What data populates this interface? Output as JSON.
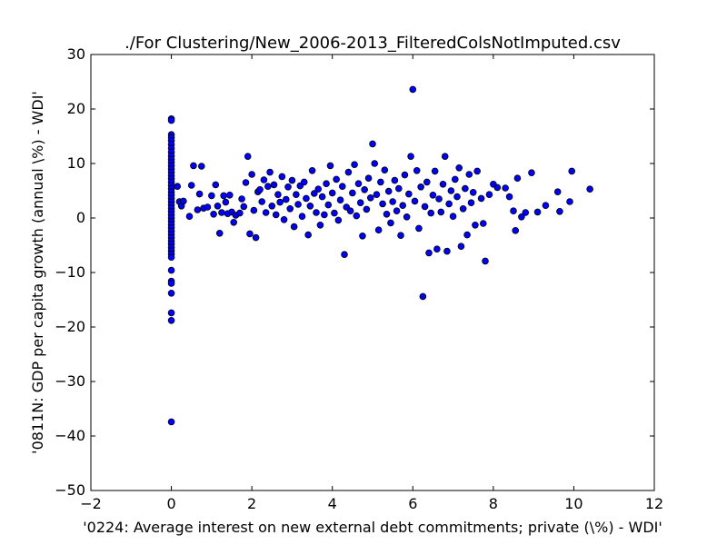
{
  "chart_data": {
    "type": "scatter",
    "title": "./For Clustering/New_2006-2013_FilteredColsNotImputed.csv",
    "xlabel": "'0224: Average interest on new external debt commitments; private  (\\%) - WDI'",
    "ylabel": "'0811N: GDP per capita growth  (annual \\%) - WDI'",
    "xlim": [
      -2,
      12
    ],
    "ylim": [
      -50,
      30
    ],
    "x_ticks": [
      -2,
      0,
      2,
      4,
      6,
      8,
      10,
      12
    ],
    "y_ticks": [
      -50,
      -40,
      -30,
      -20,
      -10,
      0,
      10,
      20,
      30
    ],
    "x_tick_labels": [
      "−2",
      "0",
      "2",
      "4",
      "6",
      "8",
      "10",
      "12"
    ],
    "y_tick_labels": [
      "−50",
      "−40",
      "−30",
      "−20",
      "−10",
      "0",
      "10",
      "20",
      "30"
    ],
    "grid": false,
    "legend": "none",
    "marker_color": "#0000ff",
    "marker_edge": "#000000",
    "series": [
      {
        "points": [
          [
            0,
            18.2
          ],
          [
            0,
            17.9
          ],
          [
            0,
            15.3
          ],
          [
            0,
            14.8
          ],
          [
            0,
            14.2
          ],
          [
            0,
            13.5
          ],
          [
            0,
            12.8
          ],
          [
            0,
            12.1
          ],
          [
            0,
            11.4
          ],
          [
            0,
            10.8
          ],
          [
            0,
            10.2
          ],
          [
            0,
            9.6
          ],
          [
            0,
            9.0
          ],
          [
            0,
            8.4
          ],
          [
            0,
            7.8
          ],
          [
            0,
            7.2
          ],
          [
            0,
            6.6
          ],
          [
            0,
            6.0
          ],
          [
            0,
            5.4
          ],
          [
            0,
            4.8
          ],
          [
            0,
            4.2
          ],
          [
            0,
            3.6
          ],
          [
            0,
            3.0
          ],
          [
            0,
            2.4
          ],
          [
            0,
            1.8
          ],
          [
            0,
            1.2
          ],
          [
            0,
            0.6
          ],
          [
            0,
            0.0
          ],
          [
            0,
            -0.6
          ],
          [
            0,
            -1.2
          ],
          [
            0,
            -1.8
          ],
          [
            0,
            -2.4
          ],
          [
            0,
            -3.0
          ],
          [
            0,
            -3.6
          ],
          [
            0,
            -4.2
          ],
          [
            0,
            -4.8
          ],
          [
            0,
            -5.4
          ],
          [
            0,
            -6.0
          ],
          [
            0,
            -6.6
          ],
          [
            0,
            -7.2
          ],
          [
            0,
            -9.6
          ],
          [
            0,
            -11.6
          ],
          [
            0,
            -12.0
          ],
          [
            0,
            -13.8
          ],
          [
            0,
            -17.4
          ],
          [
            0,
            -18.8
          ],
          [
            0,
            -37.4
          ],
          [
            0.15,
            5.8
          ],
          [
            0.2,
            3.0
          ],
          [
            0.25,
            2.2
          ],
          [
            0.3,
            3.1
          ],
          [
            0.45,
            0.3
          ],
          [
            0.5,
            6.0
          ],
          [
            0.55,
            9.6
          ],
          [
            0.65,
            1.5
          ],
          [
            0.7,
            4.4
          ],
          [
            0.75,
            9.5
          ],
          [
            0.8,
            1.8
          ],
          [
            0.9,
            2.0
          ],
          [
            1.0,
            4.1
          ],
          [
            1.05,
            0.7
          ],
          [
            1.1,
            6.1
          ],
          [
            1.15,
            2.2
          ],
          [
            1.2,
            -2.8
          ],
          [
            1.25,
            1.0
          ],
          [
            1.3,
            4.1
          ],
          [
            1.35,
            2.9
          ],
          [
            1.4,
            0.8
          ],
          [
            1.45,
            4.2
          ],
          [
            1.5,
            1.1
          ],
          [
            1.55,
            -0.8
          ],
          [
            1.6,
            0.5
          ],
          [
            1.7,
            0.9
          ],
          [
            1.75,
            3.5
          ],
          [
            1.8,
            2.1
          ],
          [
            1.85,
            6.5
          ],
          [
            1.9,
            11.3
          ],
          [
            1.95,
            -2.9
          ],
          [
            2.0,
            8.0
          ],
          [
            2.05,
            1.4
          ],
          [
            2.1,
            -3.6
          ],
          [
            2.15,
            4.8
          ],
          [
            2.2,
            5.2
          ],
          [
            2.25,
            3.0
          ],
          [
            2.3,
            7.0
          ],
          [
            2.35,
            1.0
          ],
          [
            2.4,
            5.8
          ],
          [
            2.45,
            8.4
          ],
          [
            2.5,
            2.2
          ],
          [
            2.55,
            6.1
          ],
          [
            2.6,
            0.6
          ],
          [
            2.65,
            4.3
          ],
          [
            2.7,
            2.9
          ],
          [
            2.75,
            7.6
          ],
          [
            2.8,
            -0.3
          ],
          [
            2.85,
            3.4
          ],
          [
            2.9,
            5.7
          ],
          [
            2.95,
            1.7
          ],
          [
            3.0,
            6.9
          ],
          [
            3.05,
            -1.6
          ],
          [
            3.1,
            4.3
          ],
          [
            3.15,
            2.5
          ],
          [
            3.2,
            5.9
          ],
          [
            3.25,
            0.3
          ],
          [
            3.3,
            6.6
          ],
          [
            3.35,
            3.6
          ],
          [
            3.4,
            -3.1
          ],
          [
            3.45,
            2.2
          ],
          [
            3.5,
            8.7
          ],
          [
            3.55,
            4.5
          ],
          [
            3.6,
            1.0
          ],
          [
            3.65,
            5.3
          ],
          [
            3.7,
            -1.3
          ],
          [
            3.75,
            3.9
          ],
          [
            3.8,
            0.6
          ],
          [
            3.85,
            6.3
          ],
          [
            3.9,
            2.4
          ],
          [
            3.95,
            9.6
          ],
          [
            4.0,
            4.6
          ],
          [
            4.05,
            0.9
          ],
          [
            4.1,
            7.1
          ],
          [
            4.15,
            -0.4
          ],
          [
            4.2,
            3.3
          ],
          [
            4.25,
            5.8
          ],
          [
            4.3,
            -6.7
          ],
          [
            4.35,
            2.0
          ],
          [
            4.4,
            8.4
          ],
          [
            4.45,
            1.3
          ],
          [
            4.5,
            4.6
          ],
          [
            4.55,
            9.8
          ],
          [
            4.6,
            0.4
          ],
          [
            4.65,
            6.3
          ],
          [
            4.7,
            2.8
          ],
          [
            4.75,
            -3.3
          ],
          [
            4.8,
            5.2
          ],
          [
            4.85,
            1.6
          ],
          [
            4.9,
            7.3
          ],
          [
            4.95,
            3.7
          ],
          [
            5.0,
            13.6
          ],
          [
            5.05,
            10.0
          ],
          [
            5.1,
            4.3
          ],
          [
            5.15,
            -2.2
          ],
          [
            5.2,
            6.6
          ],
          [
            5.25,
            2.6
          ],
          [
            5.3,
            8.8
          ],
          [
            5.35,
            0.7
          ],
          [
            5.4,
            4.9
          ],
          [
            5.45,
            -0.9
          ],
          [
            5.5,
            3.0
          ],
          [
            5.55,
            6.9
          ],
          [
            5.6,
            1.3
          ],
          [
            5.65,
            5.4
          ],
          [
            5.7,
            -3.2
          ],
          [
            5.75,
            2.3
          ],
          [
            5.8,
            7.9
          ],
          [
            5.85,
            0.2
          ],
          [
            5.9,
            4.4
          ],
          [
            5.95,
            11.3
          ],
          [
            6.0,
            23.6
          ],
          [
            6.05,
            3.1
          ],
          [
            6.1,
            8.7
          ],
          [
            6.15,
            -1.9
          ],
          [
            6.2,
            5.7
          ],
          [
            6.25,
            -14.4
          ],
          [
            6.3,
            2.1
          ],
          [
            6.35,
            6.6
          ],
          [
            6.4,
            -6.4
          ],
          [
            6.45,
            0.9
          ],
          [
            6.5,
            4.2
          ],
          [
            6.55,
            8.6
          ],
          [
            6.6,
            -5.7
          ],
          [
            6.65,
            3.5
          ],
          [
            6.7,
            1.1
          ],
          [
            6.75,
            6.2
          ],
          [
            6.8,
            11.3
          ],
          [
            6.85,
            -6.1
          ],
          [
            6.9,
            2.6
          ],
          [
            6.95,
            5.0
          ],
          [
            7.0,
            0.3
          ],
          [
            7.05,
            7.1
          ],
          [
            7.1,
            3.9
          ],
          [
            7.15,
            9.2
          ],
          [
            7.2,
            -5.2
          ],
          [
            7.25,
            1.7
          ],
          [
            7.3,
            5.4
          ],
          [
            7.35,
            -3.1
          ],
          [
            7.4,
            8.0
          ],
          [
            7.45,
            2.8
          ],
          [
            7.5,
            4.7
          ],
          [
            7.55,
            -1.3
          ],
          [
            7.6,
            8.6
          ],
          [
            7.7,
            3.6
          ],
          [
            7.75,
            -1.0
          ],
          [
            7.8,
            -7.9
          ],
          [
            7.9,
            4.3
          ],
          [
            8.0,
            6.2
          ],
          [
            8.1,
            5.6
          ],
          [
            8.3,
            5.5
          ],
          [
            8.4,
            3.9
          ],
          [
            8.5,
            1.3
          ],
          [
            8.55,
            -2.3
          ],
          [
            8.6,
            7.3
          ],
          [
            8.7,
            0.2
          ],
          [
            8.8,
            1.0
          ],
          [
            8.95,
            8.3
          ],
          [
            9.1,
            1.1
          ],
          [
            9.3,
            2.3
          ],
          [
            9.6,
            4.8
          ],
          [
            9.65,
            1.2
          ],
          [
            9.9,
            3.0
          ],
          [
            9.95,
            8.6
          ],
          [
            10.4,
            5.3
          ]
        ]
      }
    ]
  }
}
